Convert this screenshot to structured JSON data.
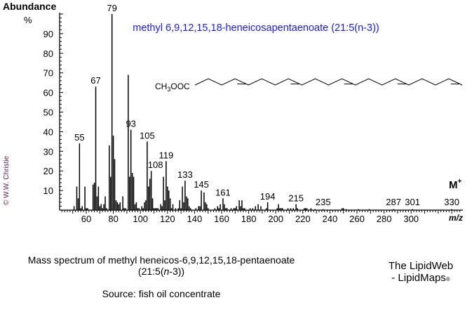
{
  "chart_data": {
    "type": "bar",
    "title": "methyl 6,9,12,15,18-heneicosapentaenoate (21:5(n-3))",
    "ylabel": "Abundance",
    "yunit": "%",
    "xlabel": "m/z",
    "xlim": [
      40,
      338
    ],
    "ylim": [
      0,
      100
    ],
    "xticks": [
      60,
      80,
      100,
      120,
      140,
      160,
      180,
      200,
      220,
      240,
      260,
      280,
      300
    ],
    "yticks": [
      10,
      20,
      30,
      40,
      50,
      60,
      70,
      80,
      90
    ],
    "grid": false,
    "molecular_ion_label": "M",
    "molecular_ion_sup": "+",
    "peaks": [
      [
        51,
        2
      ],
      [
        53,
        12
      ],
      [
        54,
        6
      ],
      [
        55,
        34
      ],
      [
        56,
        1
      ],
      [
        57,
        2
      ],
      [
        59,
        12
      ],
      [
        60,
        1
      ],
      [
        61,
        1
      ],
      [
        65,
        13
      ],
      [
        66,
        14
      ],
      [
        67,
        63
      ],
      [
        68,
        7
      ],
      [
        69,
        12
      ],
      [
        70,
        2
      ],
      [
        71,
        3
      ],
      [
        72,
        1
      ],
      [
        73,
        3
      ],
      [
        74,
        7
      ],
      [
        75,
        1
      ],
      [
        77,
        33
      ],
      [
        78,
        17
      ],
      [
        79,
        100
      ],
      [
        80,
        38
      ],
      [
        81,
        26
      ],
      [
        82,
        5
      ],
      [
        83,
        4
      ],
      [
        84,
        3
      ],
      [
        85,
        4
      ],
      [
        87,
        7
      ],
      [
        88,
        1
      ],
      [
        89,
        1
      ],
      [
        91,
        69
      ],
      [
        92,
        17
      ],
      [
        93,
        41
      ],
      [
        94,
        19
      ],
      [
        95,
        17
      ],
      [
        96,
        3
      ],
      [
        97,
        4
      ],
      [
        98,
        1
      ],
      [
        99,
        1
      ],
      [
        101,
        2
      ],
      [
        102,
        1
      ],
      [
        103,
        4
      ],
      [
        104,
        5
      ],
      [
        105,
        35
      ],
      [
        106,
        12
      ],
      [
        107,
        16
      ],
      [
        108,
        20
      ],
      [
        109,
        6
      ],
      [
        110,
        1
      ],
      [
        111,
        1
      ],
      [
        112,
        1
      ],
      [
        113,
        1
      ],
      [
        115,
        3
      ],
      [
        116,
        2
      ],
      [
        117,
        17
      ],
      [
        118,
        5
      ],
      [
        119,
        25
      ],
      [
        120,
        12
      ],
      [
        121,
        10
      ],
      [
        122,
        6
      ],
      [
        123,
        1
      ],
      [
        124,
        3
      ],
      [
        126,
        1
      ],
      [
        128,
        1
      ],
      [
        129,
        5
      ],
      [
        130,
        1
      ],
      [
        131,
        12
      ],
      [
        132,
        4
      ],
      [
        133,
        15
      ],
      [
        134,
        7
      ],
      [
        135,
        6
      ],
      [
        136,
        2
      ],
      [
        137,
        1
      ],
      [
        141,
        1
      ],
      [
        143,
        2
      ],
      [
        144,
        2
      ],
      [
        145,
        10
      ],
      [
        147,
        9
      ],
      [
        148,
        4
      ],
      [
        149,
        3
      ],
      [
        150,
        1
      ],
      [
        155,
        1
      ],
      [
        157,
        2
      ],
      [
        158,
        1
      ],
      [
        159,
        3
      ],
      [
        161,
        6
      ],
      [
        162,
        3
      ],
      [
        163,
        1
      ],
      [
        164,
        1
      ],
      [
        167,
        1
      ],
      [
        169,
        1
      ],
      [
        170,
        1
      ],
      [
        171,
        2
      ],
      [
        173,
        5
      ],
      [
        174,
        2
      ],
      [
        175,
        5
      ],
      [
        176,
        1
      ],
      [
        177,
        1
      ],
      [
        181,
        1
      ],
      [
        183,
        1
      ],
      [
        185,
        2
      ],
      [
        187,
        3
      ],
      [
        189,
        2
      ],
      [
        193,
        1
      ],
      [
        194,
        4
      ],
      [
        201,
        1
      ],
      [
        202,
        3
      ],
      [
        203,
        1
      ],
      [
        204,
        1
      ],
      [
        205,
        1
      ],
      [
        209,
        1
      ],
      [
        211,
        1
      ],
      [
        213,
        1
      ],
      [
        215,
        3
      ],
      [
        216,
        1
      ],
      [
        221,
        1
      ],
      [
        222,
        1
      ],
      [
        223,
        1
      ],
      [
        226,
        1
      ],
      [
        229,
        0.5
      ],
      [
        235,
        0.5
      ],
      [
        249,
        1
      ],
      [
        250,
        1
      ],
      [
        252,
        0.5
      ],
      [
        261,
        0.5
      ],
      [
        269,
        0.5
      ],
      [
        287,
        0.5
      ],
      [
        301,
        0.5
      ],
      [
        330,
        0.5
      ]
    ],
    "peak_labels": [
      "55",
      "67",
      "79",
      "93",
      "105",
      "108",
      "119",
      "133",
      "145",
      "161",
      "194",
      "215",
      "235",
      "287",
      "301",
      "330"
    ]
  },
  "structure": {
    "head_label": "CH",
    "head_sub": "3",
    "head_tail": "OOC"
  },
  "copyright": "© W.W. Christie",
  "caption": {
    "line1": "Mass spectrum of methyl heneicos-6,9,12,15,18-pentaenoate",
    "line2_pre": "(21:5(",
    "line2_n": "n",
    "line2_post": "-3))",
    "source": "Source:  fish oil concentrate"
  },
  "brand": {
    "line1": "The LipidWeb",
    "line2": "- LipidMaps",
    "reg": "®"
  },
  "colors": {
    "title": "#1a1aff",
    "bars": "#000000",
    "copyright": "#5b1f4f"
  }
}
